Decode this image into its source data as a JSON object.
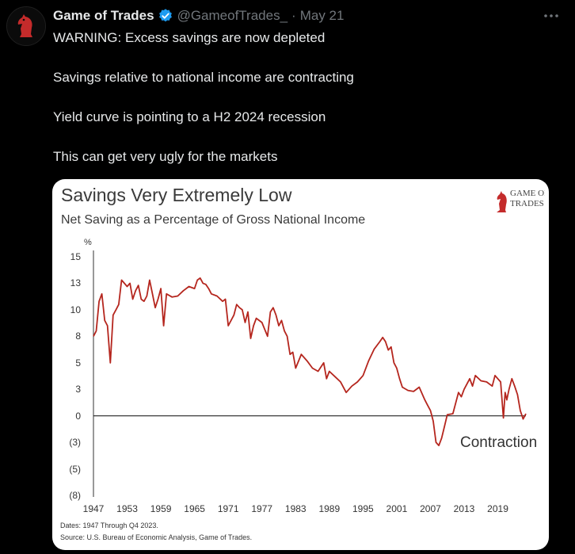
{
  "tweet": {
    "author_name": "Game of Trades",
    "handle": "@GameofTrades_",
    "separator": "·",
    "date": "May 21",
    "lines": [
      "WARNING: Excess savings are now depleted",
      "Savings relative to national income are contracting",
      "Yield curve is pointing to a H2 2024 recession",
      "This can get very ugly for the markets"
    ],
    "icons": {
      "avatar": "knight-chess-avatar-icon",
      "verified": "verified-badge-icon",
      "more": "more-options-icon"
    },
    "colors": {
      "background": "#000000",
      "text": "#e7e9ea",
      "muted": "#71767b",
      "verified": "#1d9bf0"
    }
  },
  "chart_data": {
    "type": "line",
    "title": "Savings Very Extremely Low",
    "subtitle": "Net Saving as a Percentage of Gross National Income",
    "ylabel": "%",
    "ytick_labels": [
      "15",
      "13",
      "10",
      "8",
      "5",
      "3",
      "0",
      "(3)",
      "(5)",
      "(8)"
    ],
    "ytick_values": [
      15,
      12.5,
      10,
      7.5,
      5,
      2.5,
      0,
      -2.5,
      -5,
      -7.5
    ],
    "xtick_labels": [
      "1947",
      "1953",
      "1959",
      "1965",
      "1971",
      "1977",
      "1983",
      "1989",
      "1995",
      "2001",
      "2007",
      "2013",
      "2019"
    ],
    "ylim": [
      -7.5,
      15
    ],
    "xlim": [
      1947,
      2024
    ],
    "grid": false,
    "zero_line": true,
    "line_color": "#b5261e",
    "annotation": "Contraction",
    "logo_text": [
      "GAME OF",
      "TRADES"
    ],
    "footnotes": [
      "Dates: 1947 Through Q4 2023.",
      "Source: U.S. Bureau of Economic Analysis, Game of Trades."
    ],
    "series": [
      {
        "x": [
          1947,
          1947.5,
          1948,
          1948.5,
          1949,
          1949.5,
          1950,
          1950.5,
          1951,
          1951.5,
          1952,
          1952.5,
          1953,
          1953.5,
          1954,
          1954.5,
          1955,
          1955.5,
          1956,
          1956.5,
          1957,
          1957.5,
          1958,
          1958.5,
          1959,
          1959.5,
          1960,
          1961,
          1962,
          1963,
          1964,
          1965,
          1965.5,
          1966,
          1966.5,
          1967,
          1967.5,
          1968,
          1969,
          1970,
          1970.5,
          1971,
          1972,
          1972.5,
          1973,
          1973.5,
          1974,
          1974.5,
          1975,
          1975.5,
          1976,
          1977,
          1978,
          1978.5,
          1979,
          1979.5,
          1980,
          1980.5,
          1981,
          1981.5,
          1982,
          1982.5,
          1983,
          1984,
          1985,
          1986,
          1987,
          1988,
          1988.5,
          1989,
          1990,
          1991,
          1992,
          1993,
          1994,
          1995,
          1996,
          1997,
          1998,
          1998.5,
          1999,
          1999.5,
          2000,
          2000.5,
          2001,
          2001.5,
          2002,
          2003,
          2004,
          2005,
          2006,
          2006.5,
          2007,
          2007.5,
          2008,
          2008.5,
          2009,
          2009.5,
          2010,
          2011,
          2012,
          2012.5,
          2013,
          2014,
          2014.5,
          2015,
          2016,
          2017,
          2018,
          2018.5,
          2019,
          2019.5,
          2020,
          2020.3,
          2020.6,
          2021,
          2021.5,
          2022,
          2022.5,
          2023,
          2023.5,
          2024
        ],
        "y": [
          7.5,
          8,
          10.8,
          11.5,
          9,
          8.5,
          5,
          9.5,
          10,
          10.5,
          12.8,
          12.5,
          12.2,
          12.5,
          11,
          11.8,
          12.3,
          11,
          10.8,
          11.3,
          12.8,
          11.5,
          10.2,
          11,
          12,
          8.5,
          11.5,
          11.2,
          11.3,
          11.8,
          12.2,
          12,
          12.8,
          13,
          12.5,
          12.4,
          12,
          11.5,
          11.3,
          10.8,
          11,
          8.5,
          9.5,
          10.5,
          10.2,
          10,
          8.8,
          9.8,
          7.3,
          8.5,
          9.2,
          8.8,
          7.5,
          9.8,
          10.2,
          9.5,
          8.5,
          9,
          8,
          7.5,
          5.8,
          6,
          4.5,
          5.8,
          5.2,
          4.5,
          4.2,
          5,
          3.5,
          4.2,
          3.7,
          3.2,
          2.2,
          2.8,
          3.2,
          3.8,
          5.2,
          6.3,
          7,
          7.4,
          7,
          6.2,
          6.5,
          5,
          4.5,
          3.5,
          2.7,
          2.4,
          2.3,
          2.7,
          1.5,
          1,
          0.5,
          -0.5,
          -2.5,
          -2.8,
          -2.1,
          -1,
          0.1,
          0.2,
          2.2,
          1.8,
          2.5,
          3.5,
          2.8,
          3.8,
          3.3,
          3.2,
          2.8,
          3.8,
          3.5,
          3.2,
          -0.2,
          2.2,
          1.5,
          2.5,
          3.5,
          2.8,
          2,
          0.5,
          -0.3,
          0.2
        ]
      }
    ]
  }
}
